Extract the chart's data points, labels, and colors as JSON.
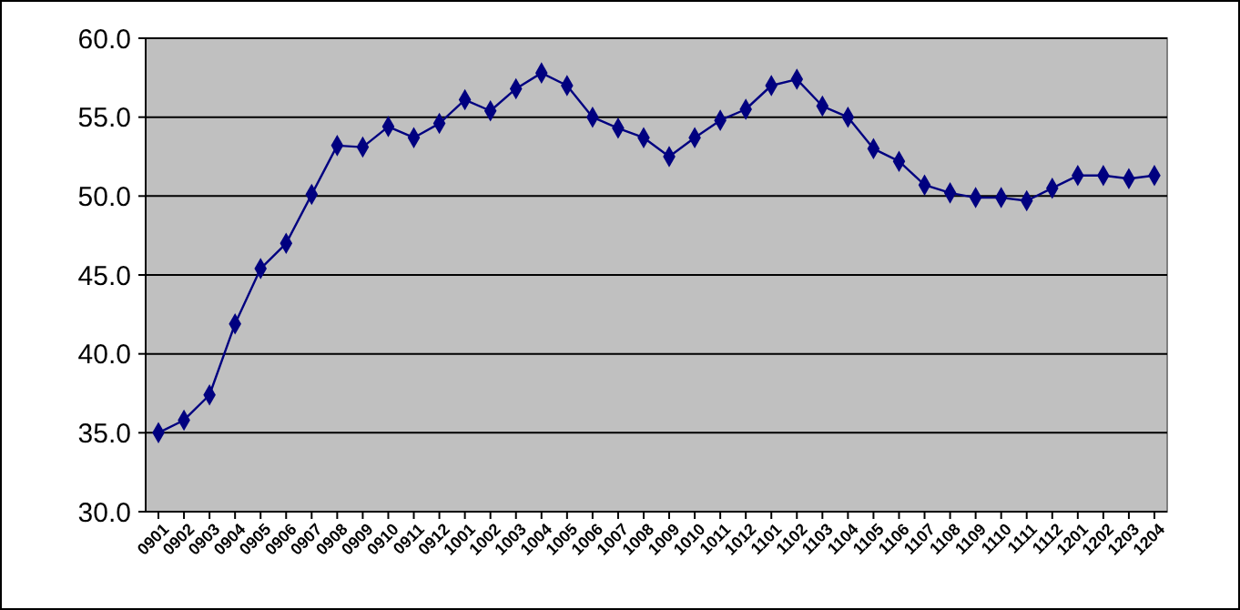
{
  "chart_data": {
    "type": "line",
    "categories": [
      "0901",
      "0902",
      "0903",
      "0904",
      "0905",
      "0906",
      "0907",
      "0908",
      "0909",
      "0910",
      "0911",
      "0912",
      "1001",
      "1002",
      "1003",
      "1004",
      "1005",
      "1006",
      "1007",
      "1008",
      "1009",
      "1010",
      "1011",
      "1012",
      "1101",
      "1102",
      "1103",
      "1104",
      "1105",
      "1106",
      "1107",
      "1108",
      "1109",
      "1110",
      "1111",
      "1112",
      "1201",
      "1202",
      "1203",
      "1204"
    ],
    "series": [
      {
        "color": "#000080",
        "values": [
          35.0,
          35.8,
          37.4,
          41.9,
          45.4,
          47.0,
          50.1,
          53.2,
          53.1,
          54.4,
          53.7,
          54.6,
          56.1,
          55.4,
          56.8,
          57.8,
          57.0,
          55.0,
          54.3,
          53.7,
          52.5,
          53.7,
          54.8,
          55.5,
          57.0,
          57.4,
          55.7,
          55.0,
          53.0,
          52.2,
          50.7,
          50.2,
          49.9,
          49.9,
          49.7,
          50.5,
          51.3,
          51.3,
          51.1,
          51.3
        ]
      }
    ],
    "ylim": [
      30,
      60
    ],
    "yticks": [
      {
        "value": 30,
        "label": "30.0"
      },
      {
        "value": 35,
        "label": "35.0"
      },
      {
        "value": 40,
        "label": "40.0"
      },
      {
        "value": 45,
        "label": "45.0"
      },
      {
        "value": 50,
        "label": "50.0"
      },
      {
        "value": 55,
        "label": "55.0"
      },
      {
        "value": 60,
        "label": "60.0"
      }
    ],
    "grid": "y",
    "marker": "diamond"
  }
}
